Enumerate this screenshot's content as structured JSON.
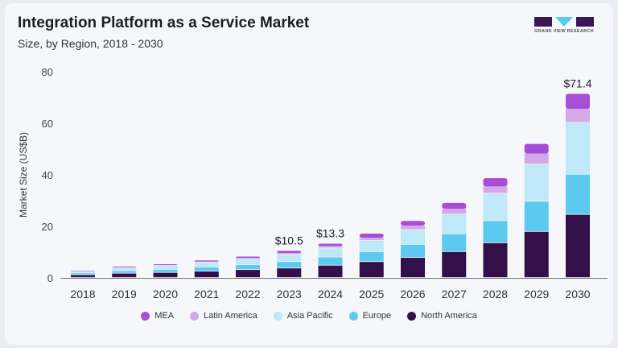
{
  "header": {
    "title": "Integration Platform as a Service Market",
    "subtitle": "Size, by Region, 2018 - 2030",
    "logo_text": "GRAND VIEW RESEARCH"
  },
  "chart_data": {
    "type": "bar",
    "stacked": true,
    "title": "Integration Platform as a Service Market",
    "subtitle": "Size, by Region, 2018 - 2030",
    "xlabel": "",
    "ylabel": "Market Size (US$B)",
    "ylim": [
      0,
      80
    ],
    "yticks": [
      0,
      20,
      40,
      60,
      80
    ],
    "grid": false,
    "legend_position": "bottom",
    "categories": [
      "2018",
      "2019",
      "2020",
      "2021",
      "2022",
      "2023",
      "2024",
      "2025",
      "2026",
      "2027",
      "2028",
      "2029",
      "2030"
    ],
    "series": [
      {
        "name": "North America",
        "color": "#33104a",
        "values": [
          1.1,
          1.7,
          2.0,
          2.5,
          3.1,
          3.7,
          4.8,
          6.2,
          7.8,
          10.1,
          13.5,
          17.9,
          24.5
        ]
      },
      {
        "name": "Europe",
        "color": "#5ccaf0",
        "values": [
          0.7,
          1.0,
          1.2,
          1.6,
          1.9,
          2.5,
          3.2,
          3.9,
          5.1,
          6.9,
          8.6,
          11.7,
          15.6
        ]
      },
      {
        "name": "Asia Pacific",
        "color": "#bfe8f8",
        "values": [
          0.7,
          1.1,
          1.4,
          1.8,
          2.2,
          2.8,
          3.5,
          4.3,
          5.7,
          7.6,
          10.6,
          14.4,
          20.1
        ]
      },
      {
        "name": "Latin America",
        "color": "#d6a8ea",
        "values": [
          0.15,
          0.3,
          0.35,
          0.45,
          0.55,
          0.7,
          0.9,
          1.2,
          1.7,
          2.2,
          2.8,
          4.2,
          5.4
        ]
      },
      {
        "name": "MEA",
        "color": "#a64fd6",
        "values": [
          0.15,
          0.3,
          0.35,
          0.45,
          0.55,
          0.8,
          0.9,
          1.6,
          1.8,
          2.3,
          3.2,
          3.8,
          5.8
        ]
      }
    ],
    "data_labels": [
      {
        "category": "2023",
        "text": "$10.5"
      },
      {
        "category": "2024",
        "text": "$13.3"
      },
      {
        "category": "2030",
        "text": "$71.4"
      }
    ],
    "legend_order": [
      "MEA",
      "Latin America",
      "Asia Pacific",
      "Europe",
      "North America"
    ]
  }
}
